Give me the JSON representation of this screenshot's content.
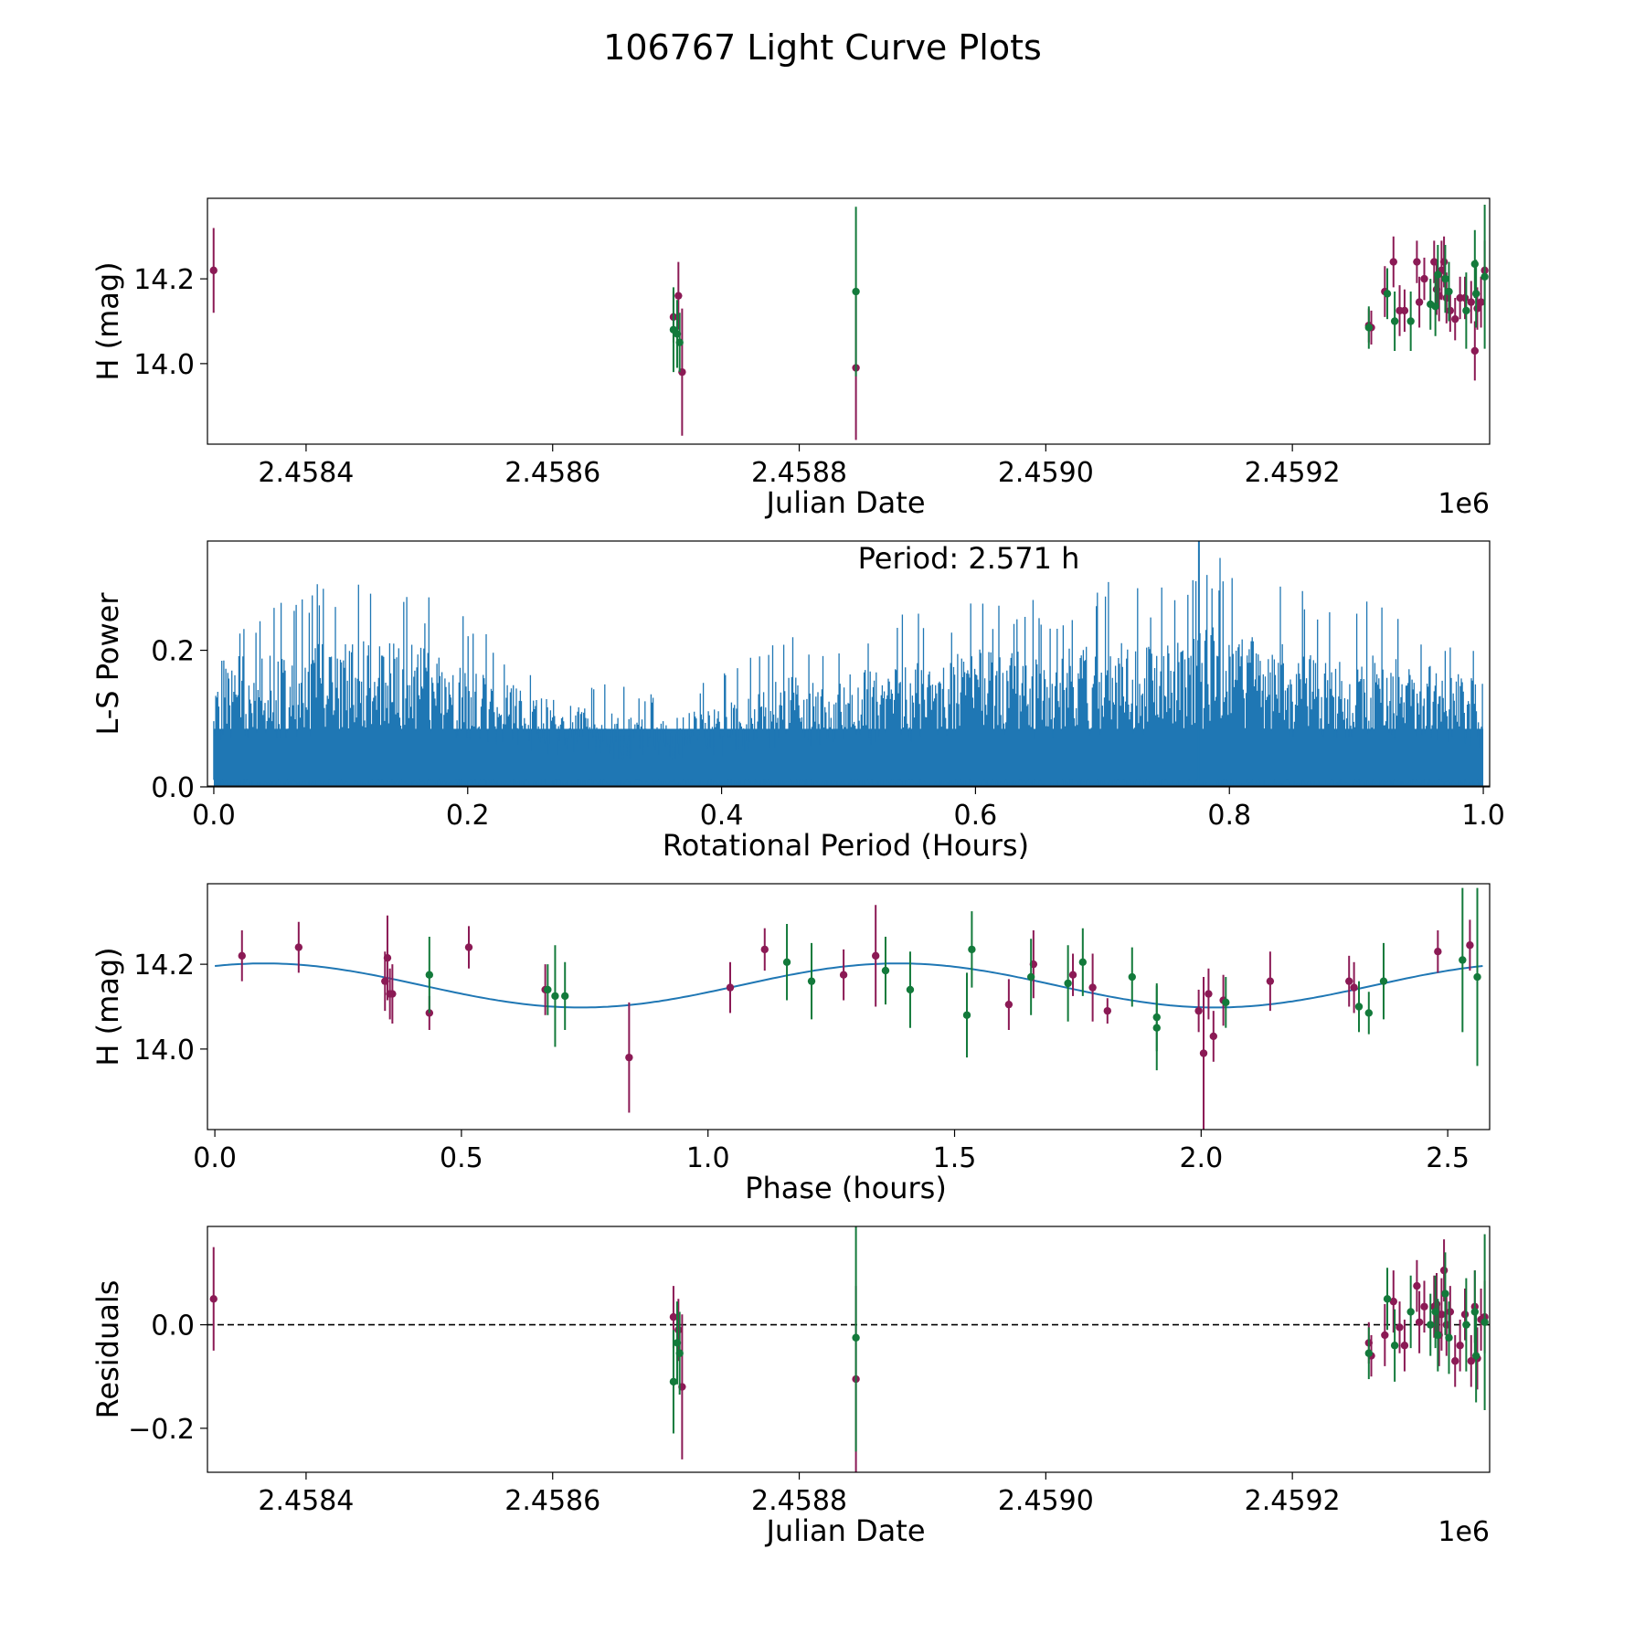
{
  "suptitle": "106767 Light Curve Plots",
  "colors": {
    "magenta": "#8B1A55",
    "green": "#137A3B",
    "blue": "#1F77B4",
    "axis": "#000000"
  },
  "chart_data": [
    {
      "id": "jd",
      "type": "scatter",
      "xlabel": "Julian Date",
      "ylabel": "H (mag)",
      "offset_label": "1e6",
      "xlim": [
        2.45832,
        2.45936
      ],
      "ylim": [
        13.81,
        14.39
      ],
      "xticks": [
        2.4584,
        2.4586,
        2.4588,
        2.459,
        2.4592
      ],
      "xtick_labels": [
        "2.4584",
        "2.4586",
        "2.4588",
        "2.4590",
        "2.4592"
      ],
      "yticks": [
        14.0,
        14.2
      ],
      "ytick_labels": [
        "14.0",
        "14.2"
      ],
      "series": [
        {
          "name": "magenta",
          "color": "magenta",
          "points": [
            [
              2.458325,
              14.22,
              0.1
            ],
            [
              2.458698,
              14.11,
              0.06
            ],
            [
              2.458702,
              14.16,
              0.08
            ],
            [
              2.458705,
              13.98,
              0.15
            ],
            [
              2.458846,
              13.99,
              0.17
            ],
            [
              2.459262,
              14.09,
              0.04
            ],
            [
              2.459264,
              14.085,
              0.04
            ],
            [
              2.459275,
              14.17,
              0.06
            ],
            [
              2.459282,
              14.24,
              0.06
            ],
            [
              2.459287,
              14.125,
              0.06
            ],
            [
              2.459291,
              14.125,
              0.05
            ],
            [
              2.459301,
              14.24,
              0.05
            ],
            [
              2.459303,
              14.145,
              0.06
            ],
            [
              2.459307,
              14.2,
              0.05
            ],
            [
              2.459315,
              14.24,
              0.05
            ],
            [
              2.459317,
              14.175,
              0.06
            ],
            [
              2.459319,
              14.16,
              0.06
            ],
            [
              2.459321,
              14.22,
              0.07
            ],
            [
              2.459323,
              14.24,
              0.06
            ],
            [
              2.459325,
              14.155,
              0.06
            ],
            [
              2.459328,
              14.125,
              0.05
            ],
            [
              2.459332,
              14.105,
              0.05
            ],
            [
              2.459336,
              14.155,
              0.05
            ],
            [
              2.45934,
              14.155,
              0.05
            ],
            [
              2.459345,
              14.145,
              0.05
            ],
            [
              2.459348,
              14.03,
              0.07
            ],
            [
              2.45935,
              14.13,
              0.05
            ],
            [
              2.459353,
              14.145,
              0.06
            ],
            [
              2.459356,
              14.22,
              0.07
            ]
          ]
        },
        {
          "name": "green",
          "color": "green",
          "points": [
            [
              2.458698,
              14.08,
              0.1
            ],
            [
              2.458701,
              14.07,
              0.08
            ],
            [
              2.458703,
              14.05,
              0.07
            ],
            [
              2.458846,
              14.17,
              0.2
            ],
            [
              2.459262,
              14.085,
              0.05
            ],
            [
              2.459277,
              14.165,
              0.06
            ],
            [
              2.459283,
              14.1,
              0.07
            ],
            [
              2.459296,
              14.1,
              0.07
            ],
            [
              2.459312,
              14.14,
              0.06
            ],
            [
              2.459316,
              14.135,
              0.07
            ],
            [
              2.459318,
              14.21,
              0.07
            ],
            [
              2.459324,
              14.2,
              0.08
            ],
            [
              2.459327,
              14.17,
              0.07
            ],
            [
              2.459341,
              14.125,
              0.09
            ],
            [
              2.459348,
              14.235,
              0.08
            ],
            [
              2.459349,
              14.165,
              0.08
            ],
            [
              2.459356,
              14.205,
              0.17
            ]
          ]
        }
      ]
    },
    {
      "id": "periodogram",
      "type": "line",
      "xlabel": "Rotational Period (Hours)",
      "ylabel": "L-S Power",
      "annotation": "Period: 2.571 h",
      "xlim": [
        -0.005,
        1.005
      ],
      "ylim": [
        0.0,
        0.36
      ],
      "xticks": [
        0.0,
        0.2,
        0.4,
        0.6,
        0.8,
        1.0
      ],
      "xtick_labels": [
        "0.0",
        "0.2",
        "0.4",
        "0.6",
        "0.8",
        "1.0"
      ],
      "yticks": [
        0.0,
        0.2
      ],
      "ytick_labels": [
        "0.0",
        "0.2"
      ],
      "envelope": {
        "x": [
          0.0,
          0.05,
          0.1,
          0.15,
          0.2,
          0.25,
          0.3,
          0.35,
          0.4,
          0.45,
          0.5,
          0.55,
          0.6,
          0.65,
          0.7,
          0.75,
          0.8,
          0.85,
          0.9,
          0.95,
          1.0
        ],
        "peak_power": [
          0.27,
          0.28,
          0.31,
          0.31,
          0.25,
          0.2,
          0.16,
          0.14,
          0.17,
          0.23,
          0.24,
          0.26,
          0.29,
          0.28,
          0.3,
          0.31,
          0.35,
          0.29,
          0.28,
          0.26,
          0.22
        ]
      },
      "highest_peak": [
        0.776,
        0.36
      ]
    },
    {
      "id": "phase",
      "type": "scatter",
      "xlabel": "Phase (hours)",
      "ylabel": "H (mag)",
      "xlim": [
        -0.015,
        2.585
      ],
      "ylim": [
        13.81,
        14.39
      ],
      "xticks": [
        0.0,
        0.5,
        1.0,
        1.5,
        2.0,
        2.5
      ],
      "xtick_labels": [
        "0.0",
        "0.5",
        "1.0",
        "1.5",
        "2.0",
        "2.5"
      ],
      "yticks": [
        14.0,
        14.2
      ],
      "ytick_labels": [
        "14.0",
        "14.2"
      ],
      "fit": {
        "mean": 14.15,
        "amplitude": 0.052,
        "period_hours": 1.2855,
        "peak_phase": 0.1,
        "x_range": [
          0.0,
          2.571
        ]
      },
      "series": [
        {
          "name": "magenta",
          "color": "magenta",
          "points": [
            [
              0.055,
              14.22,
              0.06
            ],
            [
              0.17,
              14.24,
              0.06
            ],
            [
              0.345,
              14.16,
              0.07
            ],
            [
              0.35,
              14.215,
              0.1
            ],
            [
              0.355,
              14.13,
              0.06
            ],
            [
              0.36,
              14.13,
              0.07
            ],
            [
              0.435,
              14.085,
              0.04
            ],
            [
              0.515,
              14.24,
              0.05
            ],
            [
              0.67,
              14.14,
              0.06
            ],
            [
              0.84,
              13.98,
              0.13
            ],
            [
              1.045,
              14.145,
              0.06
            ],
            [
              1.115,
              14.235,
              0.05
            ],
            [
              1.275,
              14.175,
              0.06
            ],
            [
              1.34,
              14.22,
              0.12
            ],
            [
              1.61,
              14.105,
              0.06
            ],
            [
              1.66,
              14.2,
              0.08
            ],
            [
              1.74,
              14.175,
              0.05
            ],
            [
              1.78,
              14.145,
              0.08
            ],
            [
              1.81,
              14.09,
              0.03
            ],
            [
              1.995,
              14.09,
              0.05
            ],
            [
              2.005,
              13.99,
              0.18
            ],
            [
              2.015,
              14.13,
              0.06
            ],
            [
              2.025,
              14.03,
              0.06
            ],
            [
              2.045,
              14.115,
              0.06
            ],
            [
              2.14,
              14.16,
              0.07
            ],
            [
              2.3,
              14.16,
              0.06
            ],
            [
              2.31,
              14.145,
              0.06
            ],
            [
              2.48,
              14.23,
              0.05
            ],
            [
              2.545,
              14.245,
              0.06
            ]
          ]
        },
        {
          "name": "green",
          "color": "green",
          "points": [
            [
              0.435,
              14.175,
              0.09
            ],
            [
              0.675,
              14.14,
              0.06
            ],
            [
              0.69,
              14.125,
              0.12
            ],
            [
              0.71,
              14.125,
              0.08
            ],
            [
              1.16,
              14.205,
              0.09
            ],
            [
              1.21,
              14.16,
              0.09
            ],
            [
              1.36,
              14.185,
              0.08
            ],
            [
              1.41,
              14.14,
              0.09
            ],
            [
              1.525,
              14.08,
              0.1
            ],
            [
              1.535,
              14.235,
              0.09
            ],
            [
              1.655,
              14.17,
              0.09
            ],
            [
              1.73,
              14.155,
              0.09
            ],
            [
              1.76,
              14.205,
              0.08
            ],
            [
              1.86,
              14.17,
              0.07
            ],
            [
              1.91,
              14.05,
              0.1
            ],
            [
              1.91,
              14.075,
              0.08
            ],
            [
              2.05,
              14.11,
              0.06
            ],
            [
              2.32,
              14.1,
              0.06
            ],
            [
              2.34,
              14.085,
              0.05
            ],
            [
              2.37,
              14.16,
              0.09
            ],
            [
              2.53,
              14.21,
              0.17
            ],
            [
              2.56,
              14.17,
              0.21
            ]
          ]
        }
      ]
    },
    {
      "id": "residuals",
      "type": "scatter",
      "xlabel": "Julian Date",
      "ylabel": "Residuals",
      "offset_label": "1e6",
      "xlim": [
        2.45832,
        2.45936
      ],
      "ylim": [
        -0.285,
        0.19
      ],
      "xticks": [
        2.4584,
        2.4586,
        2.4588,
        2.459,
        2.4592
      ],
      "xtick_labels": [
        "2.4584",
        "2.4586",
        "2.4588",
        "2.4590",
        "2.4592"
      ],
      "yticks": [
        -0.2,
        0.0
      ],
      "ytick_labels": [
        "−0.2",
        "0.0"
      ],
      "zero_line": 0.0,
      "series": [
        {
          "name": "magenta",
          "color": "magenta",
          "points": [
            [
              2.458325,
              0.05,
              0.1
            ],
            [
              2.458698,
              0.015,
              0.06
            ],
            [
              2.458702,
              -0.01,
              0.06
            ],
            [
              2.458705,
              -0.12,
              0.14
            ],
            [
              2.458846,
              -0.105,
              0.18
            ],
            [
              2.459262,
              -0.035,
              0.04
            ],
            [
              2.459264,
              -0.06,
              0.04
            ],
            [
              2.459275,
              -0.02,
              0.06
            ],
            [
              2.459282,
              0.045,
              0.06
            ],
            [
              2.459287,
              -0.005,
              0.05
            ],
            [
              2.459291,
              -0.04,
              0.05
            ],
            [
              2.459301,
              0.075,
              0.05
            ],
            [
              2.459303,
              0.005,
              0.06
            ],
            [
              2.459307,
              0.035,
              0.05
            ],
            [
              2.459315,
              0.035,
              0.06
            ],
            [
              2.459317,
              0.04,
              0.06
            ],
            [
              2.459319,
              -0.02,
              0.06
            ],
            [
              2.459321,
              0.02,
              0.07
            ],
            [
              2.459323,
              0.105,
              0.06
            ],
            [
              2.459325,
              0.0,
              0.06
            ],
            [
              2.459328,
              0.025,
              0.05
            ],
            [
              2.459332,
              -0.07,
              0.05
            ],
            [
              2.459336,
              -0.04,
              0.05
            ],
            [
              2.45934,
              0.02,
              0.05
            ],
            [
              2.459345,
              -0.07,
              0.05
            ],
            [
              2.459348,
              0.035,
              0.07
            ],
            [
              2.45935,
              -0.065,
              0.06
            ],
            [
              2.459353,
              0.01,
              0.06
            ],
            [
              2.459356,
              0.015,
              0.07
            ]
          ]
        },
        {
          "name": "green",
          "color": "green",
          "points": [
            [
              2.458698,
              -0.11,
              0.1
            ],
            [
              2.458701,
              -0.035,
              0.08
            ],
            [
              2.458703,
              -0.055,
              0.08
            ],
            [
              2.458846,
              -0.025,
              0.22
            ],
            [
              2.459262,
              -0.055,
              0.05
            ],
            [
              2.459277,
              0.05,
              0.06
            ],
            [
              2.459283,
              -0.04,
              0.07
            ],
            [
              2.459296,
              0.025,
              0.07
            ],
            [
              2.459312,
              0.0,
              0.06
            ],
            [
              2.459316,
              0.025,
              0.07
            ],
            [
              2.459318,
              -0.02,
              0.07
            ],
            [
              2.459324,
              0.06,
              0.08
            ],
            [
              2.459327,
              -0.025,
              0.07
            ],
            [
              2.459341,
              0.0,
              0.09
            ],
            [
              2.459348,
              0.025,
              0.08
            ],
            [
              2.459349,
              -0.06,
              0.09
            ],
            [
              2.459356,
              0.005,
              0.17
            ]
          ]
        }
      ]
    }
  ]
}
